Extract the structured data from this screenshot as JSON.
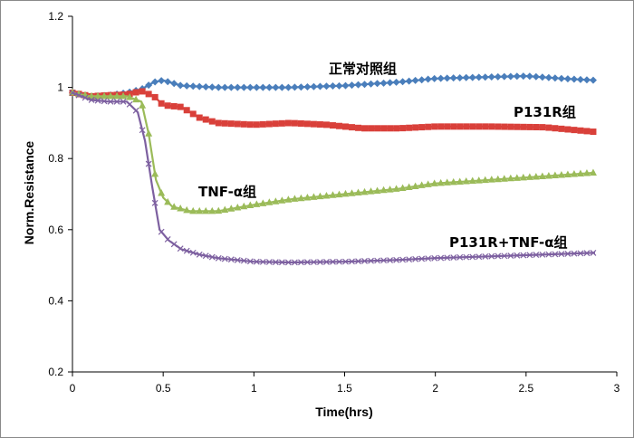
{
  "chart_data": {
    "type": "line",
    "xlabel": "Time(hrs)",
    "ylabel": "Norm.Resistance",
    "xlim": [
      0,
      3
    ],
    "ylim": [
      0.2,
      1.2
    ],
    "xticks": [
      "0",
      "0.5",
      "1",
      "1.5",
      "2",
      "2.5",
      "3"
    ],
    "yticks": [
      "0.2",
      "0.4",
      "0.6",
      "0.8",
      "1",
      "1.2"
    ],
    "grid": false,
    "legend": "none",
    "series": [
      {
        "name": "正常对照组",
        "color": "#4a7ebb",
        "marker": "diamond",
        "points": [
          [
            0,
            0.985
          ],
          [
            0.1,
            0.975
          ],
          [
            0.2,
            0.978
          ],
          [
            0.3,
            0.985
          ],
          [
            0.38,
            0.995
          ],
          [
            0.45,
            1.015
          ],
          [
            0.5,
            1.02
          ],
          [
            0.6,
            1.005
          ],
          [
            0.8,
            1.0
          ],
          [
            1.0,
            1.0
          ],
          [
            1.2,
            1.0
          ],
          [
            1.5,
            1.005
          ],
          [
            1.8,
            1.015
          ],
          [
            2.0,
            1.025
          ],
          [
            2.2,
            1.028
          ],
          [
            2.5,
            1.032
          ],
          [
            2.7,
            1.025
          ],
          [
            2.88,
            1.02
          ]
        ]
      },
      {
        "name": "P131R组",
        "color": "#d9403a",
        "marker": "square",
        "points": [
          [
            0,
            0.985
          ],
          [
            0.1,
            0.975
          ],
          [
            0.2,
            0.978
          ],
          [
            0.3,
            0.98
          ],
          [
            0.38,
            0.99
          ],
          [
            0.45,
            0.975
          ],
          [
            0.5,
            0.95
          ],
          [
            0.6,
            0.945
          ],
          [
            0.7,
            0.915
          ],
          [
            0.8,
            0.9
          ],
          [
            1.0,
            0.895
          ],
          [
            1.2,
            0.9
          ],
          [
            1.4,
            0.895
          ],
          [
            1.6,
            0.885
          ],
          [
            1.8,
            0.885
          ],
          [
            2.0,
            0.89
          ],
          [
            2.3,
            0.89
          ],
          [
            2.6,
            0.888
          ],
          [
            2.88,
            0.875
          ]
        ]
      },
      {
        "name": "TNF-α组",
        "color": "#9bbb59",
        "marker": "triangle",
        "points": [
          [
            0,
            0.985
          ],
          [
            0.1,
            0.975
          ],
          [
            0.2,
            0.975
          ],
          [
            0.3,
            0.975
          ],
          [
            0.38,
            0.96
          ],
          [
            0.42,
            0.87
          ],
          [
            0.46,
            0.74
          ],
          [
            0.5,
            0.69
          ],
          [
            0.55,
            0.665
          ],
          [
            0.65,
            0.652
          ],
          [
            0.8,
            0.652
          ],
          [
            1.0,
            0.67
          ],
          [
            1.2,
            0.685
          ],
          [
            1.5,
            0.7
          ],
          [
            1.8,
            0.715
          ],
          [
            2.0,
            0.73
          ],
          [
            2.3,
            0.74
          ],
          [
            2.6,
            0.75
          ],
          [
            2.88,
            0.76
          ]
        ]
      },
      {
        "name": "P131R+TNF-α组",
        "color": "#7d60a0",
        "marker": "x",
        "points": [
          [
            0,
            0.985
          ],
          [
            0.1,
            0.965
          ],
          [
            0.2,
            0.96
          ],
          [
            0.3,
            0.96
          ],
          [
            0.36,
            0.93
          ],
          [
            0.4,
            0.85
          ],
          [
            0.44,
            0.72
          ],
          [
            0.48,
            0.6
          ],
          [
            0.53,
            0.57
          ],
          [
            0.6,
            0.545
          ],
          [
            0.7,
            0.53
          ],
          [
            0.8,
            0.52
          ],
          [
            1.0,
            0.51
          ],
          [
            1.2,
            0.508
          ],
          [
            1.5,
            0.51
          ],
          [
            1.8,
            0.515
          ],
          [
            2.0,
            0.52
          ],
          [
            2.3,
            0.525
          ],
          [
            2.6,
            0.53
          ],
          [
            2.88,
            0.535
          ]
        ]
      }
    ]
  }
}
